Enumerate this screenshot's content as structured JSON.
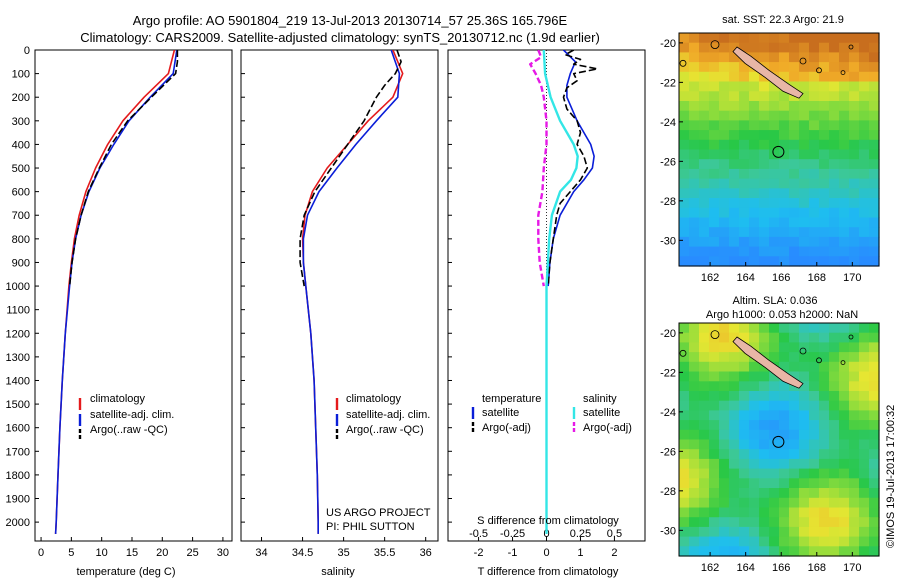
{
  "title": {
    "line1": "Argo profile: AO 5901804_219 13-Jul-2013 20130714_57 25.36S 165.796E",
    "line2": "Climatology: CARS2009. Satellite-adjusted climatology: synTS_20130712.nc (1.9d earlier)"
  },
  "colors": {
    "climatology": "#e41a1c",
    "satellite": "#0a1ed8",
    "argo": "#000000",
    "sat_salinity": "#33e6e6",
    "argo_salinity": "#e619e6"
  },
  "chart_data": [
    {
      "type": "line",
      "name": "temperature-profile",
      "xlabel": "temperature (deg C)",
      "xlim": [
        -1,
        31.5
      ],
      "ylim": [
        2080,
        0
      ],
      "xticks": [
        0,
        5,
        10,
        15,
        20,
        25,
        30
      ],
      "yticks": [
        0,
        100,
        200,
        300,
        400,
        500,
        600,
        700,
        800,
        900,
        1000,
        1100,
        1200,
        1300,
        1400,
        1500,
        1600,
        1700,
        1800,
        1900,
        2000
      ],
      "legend": [
        "climatology",
        "satellite-adj. clim.",
        "Argo(..raw -QC)"
      ],
      "series": [
        {
          "name": "climatology",
          "depth": [
            0,
            100,
            200,
            300,
            400,
            500,
            600,
            700,
            800,
            900,
            1000,
            1200,
            1400,
            1600,
            1800,
            2000,
            2050
          ],
          "values": [
            22.0,
            21.0,
            17.0,
            13.5,
            11.0,
            9.0,
            7.4,
            6.3,
            5.5,
            5.0,
            4.6,
            4.0,
            3.5,
            3.1,
            2.8,
            2.5,
            2.4
          ]
        },
        {
          "name": "satellite-adj. clim.",
          "depth": [
            0,
            100,
            200,
            300,
            400,
            500,
            600,
            700,
            800,
            900,
            1000,
            1200,
            1400,
            1600,
            1800,
            2000,
            2050
          ],
          "values": [
            22.4,
            21.8,
            18.0,
            14.5,
            12.0,
            9.7,
            7.9,
            6.6,
            5.7,
            5.1,
            4.7,
            4.0,
            3.5,
            3.1,
            2.8,
            2.5,
            2.4
          ]
        },
        {
          "name": "Argo(..raw -QC)",
          "depth": [
            0,
            50,
            100,
            200,
            300,
            400,
            500,
            600,
            700,
            800,
            900,
            1000
          ],
          "values": [
            22.5,
            22.5,
            22.2,
            18.2,
            14.3,
            11.6,
            9.6,
            7.8,
            6.6,
            5.7,
            5.1,
            4.7
          ]
        }
      ]
    },
    {
      "type": "line",
      "name": "salinity-profile",
      "xlabel": "salinity",
      "xlim": [
        33.75,
        36.15
      ],
      "ylim": [
        2080,
        0
      ],
      "xticks": [
        34,
        34.5,
        35,
        35.5,
        36
      ],
      "legend": [
        "climatology",
        "satellite-adj. clim.",
        "Argo(..raw -QC)"
      ],
      "annotation": [
        "US ARGO PROJECT",
        "PI: PHIL SUTTON"
      ],
      "series": [
        {
          "name": "climatology",
          "depth": [
            0,
            100,
            200,
            300,
            400,
            500,
            600,
            700,
            800,
            900,
            1000,
            1200,
            1400,
            1600,
            1800,
            2000,
            2050
          ],
          "values": [
            35.6,
            35.72,
            35.6,
            35.3,
            35.05,
            34.8,
            34.62,
            34.53,
            34.5,
            34.51,
            34.54,
            34.6,
            34.64,
            34.66,
            34.68,
            34.69,
            34.69
          ]
        },
        {
          "name": "satellite-adj. clim.",
          "depth": [
            0,
            100,
            200,
            300,
            400,
            500,
            600,
            700,
            800,
            900,
            1000,
            1200,
            1400,
            1600,
            1800,
            2000,
            2050
          ],
          "values": [
            35.58,
            35.68,
            35.66,
            35.4,
            35.15,
            34.92,
            34.7,
            34.56,
            34.51,
            34.51,
            34.54,
            34.6,
            34.64,
            34.66,
            34.68,
            34.69,
            34.69
          ]
        },
        {
          "name": "Argo(..raw -QC)",
          "depth": [
            0,
            50,
            100,
            150,
            200,
            300,
            400,
            500,
            600,
            700,
            800,
            900,
            1000
          ],
          "values": [
            35.65,
            35.7,
            35.63,
            35.5,
            35.4,
            35.25,
            35.05,
            34.85,
            34.65,
            34.52,
            34.47,
            34.47,
            34.52
          ]
        }
      ]
    },
    {
      "type": "line",
      "name": "difference-profile",
      "xlabel": "T difference from climatology",
      "xlabel_top": "S difference from climatology",
      "xlim": [
        -2.9,
        2.9
      ],
      "ylim": [
        2080,
        0
      ],
      "xticks": [
        -2,
        -1,
        0,
        1,
        2
      ],
      "xticks_s": [
        "-0.5",
        "-0.25",
        "0",
        "0.25",
        "0.5"
      ],
      "legend_headers": [
        "temperature",
        "salinity"
      ],
      "legend": [
        "satellite",
        "Argo(-adj)",
        "satellite",
        "Argo(-adj)"
      ],
      "series": [
        {
          "name": "temperature satellite",
          "depth": [
            0,
            50,
            100,
            150,
            200,
            300,
            400,
            450,
            500,
            550,
            600,
            700,
            800,
            900,
            1000
          ],
          "values": [
            0.5,
            0.85,
            0.7,
            0.6,
            0.6,
            0.9,
            1.3,
            1.4,
            1.35,
            1.1,
            0.8,
            0.4,
            0.2,
            0.1,
            0.05
          ]
        },
        {
          "name": "temperature Argo(-adj)",
          "depth": [
            0,
            20,
            40,
            60,
            80,
            100,
            130,
            160,
            200,
            250,
            300,
            350,
            400,
            450,
            500,
            550,
            600,
            650,
            700,
            800,
            900,
            1000
          ],
          "values": [
            0.8,
            0.55,
            1.0,
            0.8,
            1.5,
            0.8,
            0.9,
            0.6,
            0.5,
            0.6,
            0.9,
            1.0,
            0.9,
            1.1,
            1.2,
            1.0,
            0.7,
            0.4,
            0.3,
            0.2,
            0.1,
            0.05
          ]
        },
        {
          "name": "salinity satellite",
          "depth": [
            0,
            100,
            200,
            300,
            400,
            450,
            500,
            550,
            600,
            700,
            800,
            900,
            1000,
            1200,
            1400,
            1600,
            1800,
            2000,
            2050
          ],
          "values": [
            -0.02,
            -0.01,
            0.03,
            0.1,
            0.2,
            0.23,
            0.22,
            0.18,
            0.1,
            0.04,
            0.02,
            0.01,
            0.0,
            0.0,
            0.0,
            0.0,
            0.0,
            0.0,
            0.0
          ]
        },
        {
          "name": "salinity Argo(-adj)",
          "depth": [
            0,
            30,
            60,
            100,
            150,
            200,
            300,
            400,
            500,
            600,
            700,
            800,
            900,
            1000
          ],
          "values": [
            -0.06,
            -0.04,
            -0.12,
            -0.08,
            -0.04,
            -0.02,
            0.0,
            0.0,
            -0.02,
            -0.03,
            -0.06,
            -0.06,
            -0.05,
            -0.02
          ]
        }
      ]
    }
  ],
  "maps": {
    "sst": {
      "title": "sat. SST: 22.3 Argo: 21.9",
      "xticks": [
        "162",
        "164",
        "166",
        "168",
        "170"
      ],
      "yticks": [
        "-20",
        "-22",
        "-24",
        "-26",
        "-28",
        "-30"
      ]
    },
    "sla": {
      "title_line1": "Altim. SLA: 0.036",
      "title_line2": "Argo h1000: 0.053 h2000: NaN",
      "xticks": [
        "162",
        "164",
        "166",
        "168",
        "170"
      ],
      "yticks": [
        "-20",
        "-22",
        "-24",
        "-26",
        "-28",
        "-30"
      ]
    }
  },
  "footer": "©IMOS 19-Jul-2013 17:00:32"
}
